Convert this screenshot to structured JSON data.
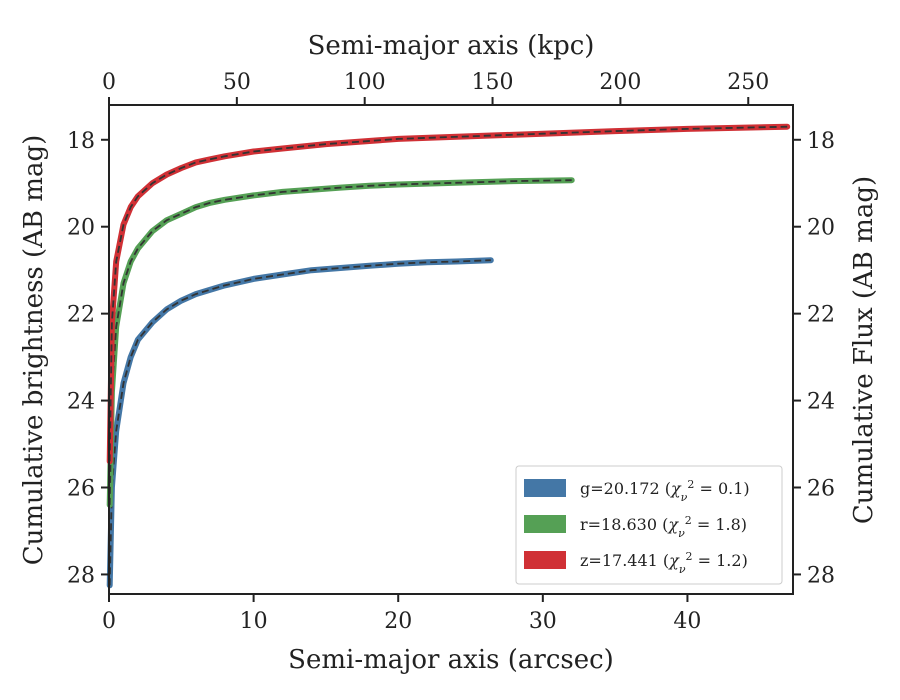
{
  "chart_data": {
    "type": "line",
    "xlabel": "Semi-major axis (arcsec)",
    "ylabel": "Cumulative brightness (AB mag)",
    "x2label": "Semi-major axis (kpc)",
    "y2label": "Cumulative Flux (AB mag)",
    "xlim": [
      0,
      47.3
    ],
    "ylim": [
      28.45,
      17.2
    ],
    "x2lim": [
      0,
      267.5
    ],
    "y_inverted": true,
    "grid": false,
    "legend_position": "lower-right",
    "xticks": [
      "0",
      "10",
      "20",
      "30",
      "40"
    ],
    "xtick_values": [
      0,
      10,
      20,
      30,
      40
    ],
    "x2ticks": [
      "0",
      "50",
      "100",
      "150",
      "200",
      "250"
    ],
    "x2tick_values": [
      0,
      50,
      100,
      150,
      200,
      250
    ],
    "yticks": [
      "18",
      "20",
      "22",
      "24",
      "26",
      "28"
    ],
    "ytick_values": [
      18,
      20,
      22,
      24,
      26,
      28
    ],
    "y2ticks": [
      "18",
      "20",
      "22",
      "24",
      "26",
      "28"
    ],
    "series": [
      {
        "name": "g=20.172 ($\\chi_\\nu^2 = 0.1$)",
        "label_main": "g=20.172 (",
        "label_math": "χ",
        "label_tail": " = 0.1)",
        "color": "#4477a6",
        "x": [
          0.05,
          0.2,
          0.5,
          1.0,
          1.5,
          2.0,
          3.0,
          4.0,
          5.0,
          6.0,
          7.0,
          8.0,
          10.0,
          12.0,
          14.0,
          16.0,
          18.0,
          20.0,
          22.0,
          24.0,
          26.4
        ],
        "y": [
          28.25,
          26.0,
          24.7,
          23.6,
          23.0,
          22.6,
          22.2,
          21.9,
          21.7,
          21.55,
          21.45,
          21.35,
          21.2,
          21.1,
          21.0,
          20.95,
          20.9,
          20.85,
          20.82,
          20.8,
          20.77
        ]
      },
      {
        "name": "r=18.630 ($\\chi_\\nu^2 = 1.8$)",
        "label_main": "r=18.630 (",
        "label_math": "χ",
        "label_tail": " = 1.8)",
        "color": "#55a055",
        "x": [
          0.05,
          0.2,
          0.5,
          1.0,
          1.5,
          2.0,
          3.0,
          4.0,
          5.0,
          6.0,
          7.0,
          8.0,
          10.0,
          12.0,
          14.0,
          16.0,
          18.0,
          20.0,
          24.0,
          28.0,
          32.0
        ],
        "y": [
          26.4,
          23.8,
          22.3,
          21.3,
          20.8,
          20.5,
          20.1,
          19.85,
          19.7,
          19.55,
          19.45,
          19.38,
          19.28,
          19.2,
          19.15,
          19.1,
          19.06,
          19.03,
          18.99,
          18.95,
          18.93
        ]
      },
      {
        "name": "z=17.441 ($\\chi_\\nu^2 = 1.2$)",
        "label_main": "z=17.441 (",
        "label_math": "χ",
        "label_tail": " = 1.2)",
        "color": "#d03035",
        "x": [
          0.05,
          0.2,
          0.5,
          1.0,
          1.5,
          2.0,
          3.0,
          4.0,
          5.0,
          6.0,
          7.0,
          8.0,
          10.0,
          12.0,
          15.0,
          20.0,
          25.0,
          30.0,
          35.0,
          40.0,
          44.0,
          46.9
        ],
        "y": [
          25.4,
          22.2,
          20.8,
          19.95,
          19.55,
          19.3,
          19.0,
          18.8,
          18.65,
          18.52,
          18.45,
          18.38,
          18.27,
          18.2,
          18.1,
          17.98,
          17.92,
          17.86,
          17.8,
          17.75,
          17.72,
          17.7
        ]
      }
    ]
  }
}
